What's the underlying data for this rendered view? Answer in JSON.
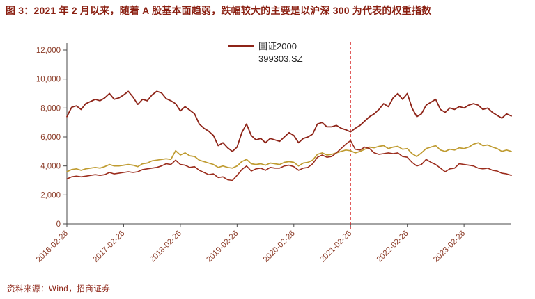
{
  "page": {
    "title": "图 3：2021 年 2 月以来，随着 A 股基本面趋弱，跌幅较大的主要是以沪深 300 为代表的权重指数",
    "source_note": "资料来源：Wind，招商证券"
  },
  "legend": {
    "line1": "国证2000",
    "line2": "399303.SZ"
  },
  "colors": {
    "title_red": "#8a1f11",
    "axis_label": "#8a3a26",
    "axis_line": "#4a4a4a",
    "event_line": "#d62020"
  },
  "chart_data": {
    "type": "line",
    "title": "",
    "xlabel": "",
    "ylabel": "",
    "ylim": [
      0,
      12000
    ],
    "y_tick_values": [
      0,
      2000,
      4000,
      6000,
      8000,
      10000,
      12000
    ],
    "y_tick_labels": [
      "0",
      "2,000",
      "4,000",
      "6,000",
      "8,000",
      "10,000",
      "12,000"
    ],
    "x_unit": "monthly, 2016-02 through 2023-12",
    "x_tick_labels": [
      "2016-02-26",
      "2017-02-26",
      "2018-02-26",
      "2019-02-26",
      "2020-02-26",
      "2021-02-26",
      "2022-02-26",
      "2023-02-26"
    ],
    "x_tick_indices": [
      0,
      12,
      24,
      36,
      48,
      60,
      72,
      84
    ],
    "annotation": {
      "type": "vline-dashed",
      "at_index": 60,
      "at_label": "2021-02-26"
    },
    "grid": false,
    "legend_position": "top-center",
    "series": [
      {
        "name": "国证2000 399303.SZ",
        "color": "#8e2418",
        "width": 1.8,
        "values": [
          7400,
          8050,
          8150,
          7900,
          8300,
          8450,
          8600,
          8500,
          8700,
          9000,
          8600,
          8700,
          8900,
          9150,
          8750,
          8250,
          8600,
          8500,
          8900,
          9150,
          9050,
          8650,
          8500,
          8300,
          7800,
          8100,
          7850,
          7600,
          6900,
          6600,
          6400,
          6100,
          5400,
          5600,
          5250,
          5000,
          5300,
          6300,
          6900,
          6100,
          5800,
          5900,
          5600,
          5900,
          5800,
          5700,
          6000,
          6300,
          6100,
          5600,
          5900,
          6000,
          6200,
          6900,
          7000,
          6700,
          6700,
          6800,
          6600,
          6500,
          6350,
          6600,
          6800,
          7100,
          7400,
          7600,
          7900,
          8300,
          8100,
          8700,
          9000,
          8600,
          9000,
          8000,
          7400,
          7600,
          8200,
          8400,
          8600,
          7900,
          7700,
          8000,
          7900,
          8100,
          8000,
          8200,
          8300,
          8200,
          7900,
          8000,
          7700,
          7500,
          7300,
          7600,
          7450
        ]
      },
      {
        "name": "",
        "color": "#bf9b30",
        "width": 1.7,
        "values": [
          3600,
          3750,
          3800,
          3700,
          3800,
          3850,
          3900,
          3850,
          3950,
          4100,
          4000,
          4000,
          4050,
          4100,
          4050,
          3950,
          4150,
          4200,
          4350,
          4400,
          4450,
          4500,
          4450,
          5050,
          4750,
          4900,
          4700,
          4650,
          4400,
          4300,
          4200,
          4100,
          3900,
          4000,
          3900,
          3850,
          4000,
          4300,
          4450,
          4150,
          4100,
          4150,
          4050,
          4200,
          4150,
          4100,
          4250,
          4300,
          4250,
          4000,
          4200,
          4250,
          4400,
          4800,
          4900,
          4750,
          4800,
          4900,
          5000,
          5100,
          5050,
          4900,
          5000,
          5150,
          5300,
          5250,
          5350,
          5400,
          5200,
          5300,
          5350,
          5150,
          5200,
          4850,
          4650,
          4900,
          5200,
          5300,
          5400,
          5100,
          5000,
          5150,
          5100,
          5250,
          5200,
          5300,
          5500,
          5600,
          5400,
          5450,
          5300,
          5200,
          5000,
          5100,
          5000
        ]
      },
      {
        "name": "",
        "color": "#9b2c1c",
        "width": 1.6,
        "values": [
          3100,
          3250,
          3300,
          3250,
          3300,
          3350,
          3400,
          3350,
          3400,
          3550,
          3450,
          3500,
          3550,
          3600,
          3550,
          3600,
          3750,
          3800,
          3850,
          3900,
          4000,
          4150,
          4100,
          4400,
          4100,
          4050,
          3900,
          3950,
          3700,
          3550,
          3400,
          3450,
          3200,
          3250,
          3050,
          3000,
          3350,
          3750,
          4000,
          3650,
          3800,
          3850,
          3700,
          3900,
          3850,
          3850,
          4000,
          4050,
          3950,
          3700,
          3850,
          3900,
          4150,
          4600,
          4750,
          4600,
          4650,
          4900,
          5200,
          5500,
          5750,
          5150,
          5100,
          5300,
          5200,
          4900,
          4800,
          4850,
          4900,
          4850,
          4900,
          4650,
          4600,
          4250,
          4000,
          4100,
          4450,
          4250,
          4100,
          3850,
          3600,
          3800,
          3850,
          4150,
          4100,
          4050,
          4000,
          3850,
          3800,
          3850,
          3700,
          3650,
          3500,
          3450,
          3350
        ]
      }
    ]
  }
}
